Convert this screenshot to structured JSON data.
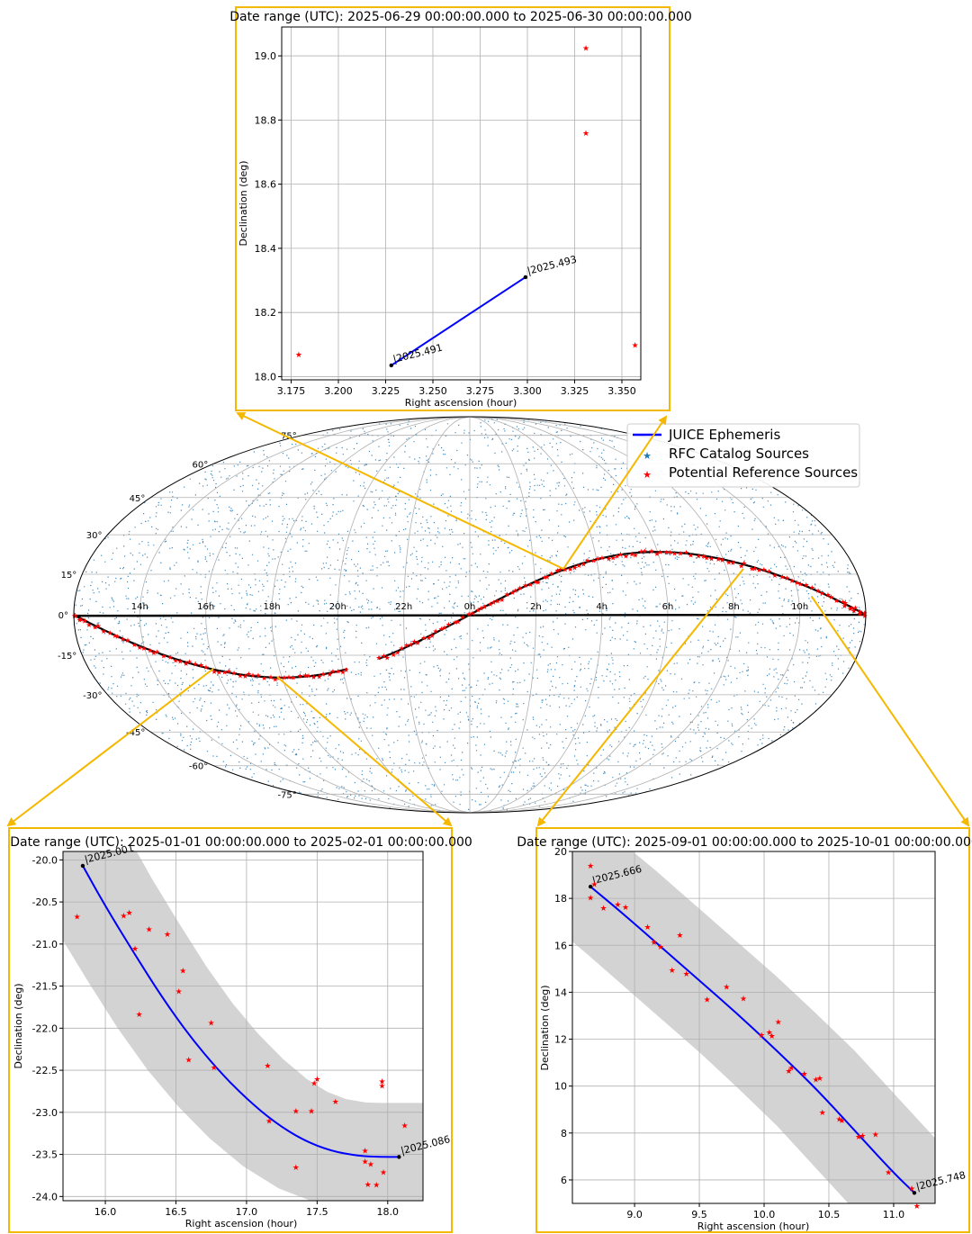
{
  "chart_data": [
    {
      "id": "inset-top",
      "type": "scatter",
      "title": "Date range (UTC): 2025-06-29 00:00:00.000 to 2025-06-30 00:00:00.000",
      "xlabel": "Right ascension (hour)",
      "ylabel": "Declination (deg)",
      "xlim": [
        3.17,
        3.36
      ],
      "ylim": [
        17.99,
        19.09
      ],
      "xticks": [
        "3.175",
        "3.200",
        "3.225",
        "3.250",
        "3.275",
        "3.300",
        "3.325",
        "3.350"
      ],
      "yticks": [
        "18.0",
        "18.2",
        "18.4",
        "18.6",
        "18.8",
        "19.0"
      ],
      "grid": true,
      "border_color": "#F5B800",
      "ephemeris": {
        "x": [
          3.228,
          3.299
        ],
        "y": [
          18.035,
          18.31
        ]
      },
      "ephemeris_labels": [
        {
          "text": "2025.491",
          "x": 3.228,
          "y": 18.035
        },
        {
          "text": "2025.493",
          "x": 3.299,
          "y": 18.31
        }
      ],
      "sources": {
        "x": [
          3.179,
          3.331,
          3.331,
          3.357
        ],
        "y": [
          18.07,
          19.025,
          18.76,
          18.1
        ]
      }
    },
    {
      "id": "inset-left",
      "type": "scatter",
      "title": "Date range (UTC): 2025-01-01 00:00:00.000 to 2025-02-01 00:00:00.000",
      "xlabel": "Right ascension (hour)",
      "ylabel": "Declination (deg)",
      "xlim": [
        15.7,
        18.25
      ],
      "ylim": [
        -24.05,
        -19.9
      ],
      "xticks": [
        "16.0",
        "16.5",
        "17.0",
        "17.5",
        "18.0"
      ],
      "yticks": [
        "-20.0",
        "-20.5",
        "-21.0",
        "-21.5",
        "-22.0",
        "-22.5",
        "-23.0",
        "-23.5",
        "-24.0"
      ],
      "grid": true,
      "border_color": "#F5B800",
      "ephemeris": {
        "x": [
          15.84,
          16.0,
          16.2,
          16.4,
          16.6,
          16.8,
          17.0,
          17.2,
          17.4,
          17.6,
          17.8,
          17.95,
          18.08
        ],
        "y": [
          -20.07,
          -20.55,
          -21.1,
          -21.63,
          -22.1,
          -22.5,
          -22.84,
          -23.12,
          -23.33,
          -23.46,
          -23.52,
          -23.53,
          -23.53
        ]
      },
      "ephemeris_labels": [
        {
          "text": "2025.001",
          "x": 15.84,
          "y": -20.07
        },
        {
          "text": "2025.086",
          "x": 18.08,
          "y": -23.53
        }
      ],
      "sources": {
        "x": [
          15.8,
          16.13,
          16.17,
          16.21,
          16.24,
          16.31,
          16.44,
          16.52,
          16.55,
          16.59,
          16.75,
          16.77,
          17.15,
          17.16,
          17.35,
          17.35,
          17.46,
          17.48,
          17.5,
          17.63,
          17.84,
          17.84,
          17.86,
          17.88,
          17.92,
          17.96,
          17.96,
          17.97,
          18.12
        ],
        "y": [
          -20.67,
          -20.66,
          -20.62,
          -21.05,
          -21.83,
          -20.82,
          -20.88,
          -21.56,
          -21.31,
          -22.37,
          -21.93,
          -22.46,
          -22.44,
          -23.1,
          -22.98,
          -23.65,
          -22.98,
          -22.65,
          -22.6,
          -22.87,
          -23.58,
          -23.45,
          -23.85,
          -23.61,
          -23.86,
          -22.68,
          -22.63,
          -23.71,
          -23.15
        ]
      },
      "band": true
    },
    {
      "id": "inset-right",
      "type": "scatter",
      "title": "Date range (UTC): 2025-09-01 00:00:00.000 to 2025-10-01 00:00:00.000",
      "xlabel": "Right ascension (hour)",
      "ylabel": "Declination (deg)",
      "xlim": [
        8.52,
        11.32
      ],
      "ylim": [
        5.0,
        20.0
      ],
      "xticks": [
        "9.0",
        "9.5",
        "10.0",
        "10.5",
        "11.0"
      ],
      "yticks": [
        "6",
        "8",
        "10",
        "12",
        "14",
        "16",
        "18",
        "20"
      ],
      "grid": true,
      "border_color": "#F5B800",
      "ephemeris": {
        "x": [
          8.66,
          8.9,
          9.2,
          9.5,
          9.8,
          10.1,
          10.4,
          10.7,
          11.0,
          11.16
        ],
        "y": [
          18.5,
          17.4,
          15.95,
          14.5,
          13.05,
          11.5,
          9.9,
          8.1,
          6.3,
          5.45
        ]
      },
      "ephemeris_labels": [
        {
          "text": "2025.666",
          "x": 8.66,
          "y": 18.5
        },
        {
          "text": "2025.748",
          "x": 11.16,
          "y": 5.45
        }
      ],
      "sources": {
        "x": [
          8.66,
          8.66,
          8.69,
          8.76,
          8.87,
          8.93,
          9.1,
          9.15,
          9.2,
          9.29,
          9.35,
          9.4,
          9.56,
          9.71,
          9.84,
          9.98,
          10.04,
          10.06,
          10.11,
          10.19,
          10.21,
          10.31,
          10.4,
          10.43,
          10.45,
          10.58,
          10.6,
          10.73,
          10.76,
          10.86,
          10.96,
          11.14,
          11.18
        ],
        "y": [
          19.4,
          18.05,
          18.62,
          17.6,
          17.75,
          17.65,
          16.8,
          16.15,
          15.95,
          14.95,
          16.45,
          14.8,
          13.7,
          14.25,
          13.75,
          12.2,
          12.3,
          12.15,
          12.75,
          10.65,
          10.8,
          10.55,
          10.3,
          10.35,
          8.9,
          8.6,
          8.55,
          7.85,
          7.9,
          7.95,
          6.35,
          5.65,
          4.9
        ]
      },
      "band": true
    },
    {
      "id": "sky-map",
      "type": "scatter",
      "projection": "mollweide",
      "ra_labels": [
        "14h",
        "16h",
        "18h",
        "20h",
        "22h",
        "0h",
        "2h",
        "4h",
        "6h",
        "8h",
        "10h"
      ],
      "dec_labels": [
        "75°",
        "60°",
        "45°",
        "30°",
        "15°",
        "0°",
        "-15°",
        "-30°",
        "-45°",
        "-60°",
        "-75°"
      ],
      "legend": {
        "position": "top-right",
        "entries": [
          {
            "label": "JUICE Ephemeris",
            "color": "#0000FF"
          },
          {
            "label": "RFC Catalog Sources",
            "color": "#1f77b4"
          },
          {
            "label": "Potential Reference Sources",
            "color": "#FF0000"
          }
        ]
      }
    }
  ],
  "colors": {
    "frame": "#F5B800",
    "ephemeris": "#0000FF",
    "sources": "#FF0000",
    "catalog": "#1f77b4",
    "band": "#D3D3D3",
    "grid": "#B0B0B0"
  }
}
